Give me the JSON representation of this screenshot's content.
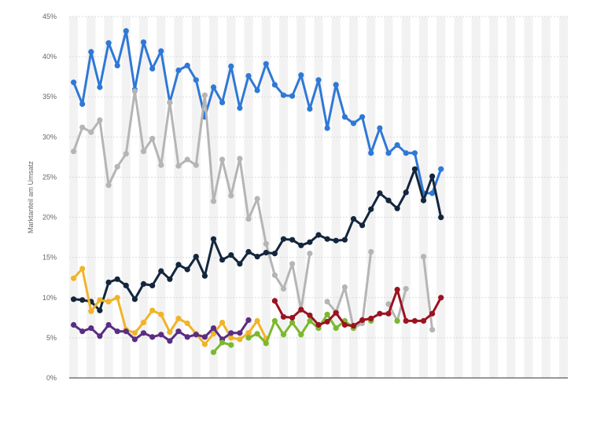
{
  "chart_data": {
    "type": "line",
    "title": "",
    "xlabel": "",
    "ylabel": "Marktanteil am Umsatz",
    "ylim": [
      0,
      45
    ],
    "yticks": [
      0,
      5,
      10,
      15,
      20,
      25,
      30,
      35,
      40,
      45
    ],
    "ytick_labels": [
      "0%",
      "5%",
      "10%",
      "15%",
      "20%",
      "25%",
      "30%",
      "35%",
      "40%",
      "45%"
    ],
    "x": [
      1,
      2,
      3,
      4,
      5,
      6,
      7,
      8,
      9,
      10,
      11,
      12,
      13,
      14,
      15,
      16,
      17,
      18,
      19,
      20,
      21,
      22,
      23,
      24,
      25,
      26,
      27,
      28,
      29,
      30,
      31,
      32,
      33,
      34,
      35,
      36,
      37,
      38,
      39,
      40,
      41,
      42,
      43,
      44,
      45,
      46,
      47,
      48,
      49,
      50,
      51,
      52,
      53,
      54,
      55,
      56,
      57
    ],
    "grid": true,
    "legend": "none",
    "colors": {
      "band": "#f2f2f2",
      "grid": "#d9d9d9",
      "axis": "#333333"
    },
    "series": [
      {
        "color": "#2f78d6",
        "values": [
          36.8,
          34.1,
          40.6,
          36.2,
          41.7,
          38.9,
          43.2,
          35.9,
          41.8,
          38.5,
          40.7,
          34.3,
          38.3,
          38.9,
          37.1,
          32.5,
          36.2,
          34.3,
          38.8,
          33.6,
          37.6,
          35.8,
          39.1,
          36.5,
          35.2,
          35.1,
          37.7,
          33.5,
          37.1,
          31.1,
          36.5,
          32.5,
          31.7,
          32.5,
          28.0,
          31.1,
          28.0,
          29.0,
          28.0,
          28.0,
          23.0,
          23.0,
          26.0,
          null,
          null,
          null,
          null,
          null,
          null,
          null,
          null,
          null,
          null,
          null,
          null,
          null,
          null
        ]
      },
      {
        "color": "#b5b5b5",
        "values": [
          28.2,
          31.2,
          30.6,
          32.1,
          24.0,
          26.3,
          27.9,
          35.7,
          28.2,
          29.8,
          26.5,
          34.3,
          26.4,
          27.2,
          26.5,
          35.2,
          22.0,
          27.2,
          22.7,
          27.3,
          19.8,
          22.3,
          16.7,
          12.8,
          11.1,
          14.2,
          8.5,
          15.5,
          null,
          9.5,
          8.2,
          11.3,
          6.2,
          6.8,
          15.7,
          null,
          9.2,
          7.1,
          11.1,
          null,
          15.1,
          6.0,
          null,
          null,
          null,
          null,
          null,
          null,
          null,
          null,
          null,
          null,
          null,
          null,
          null,
          null,
          null
        ]
      },
      {
        "color": "#14263d",
        "values": [
          9.8,
          9.7,
          9.5,
          8.4,
          11.9,
          12.3,
          11.5,
          9.8,
          11.7,
          11.5,
          13.3,
          12.3,
          14.1,
          13.5,
          15.1,
          12.7,
          17.3,
          14.7,
          15.3,
          14.2,
          15.7,
          15.1,
          15.6,
          15.5,
          17.3,
          17.2,
          16.5,
          16.9,
          17.8,
          17.3,
          17.1,
          17.2,
          19.8,
          19.0,
          21.0,
          23.0,
          22.1,
          21.1,
          23.1,
          26.0,
          22.1,
          25.1,
          20.0,
          null,
          null,
          null,
          null,
          null,
          null,
          null,
          null,
          null,
          null,
          null,
          null,
          null,
          null
        ]
      },
      {
        "color": "#f0b429",
        "values": [
          12.4,
          13.6,
          8.3,
          9.7,
          9.5,
          10.0,
          6.0,
          5.6,
          6.9,
          8.4,
          7.9,
          5.7,
          7.4,
          6.8,
          5.5,
          4.2,
          5.5,
          6.9,
          5.0,
          4.8,
          5.6,
          7.1,
          4.9,
          null,
          null,
          null,
          null,
          null,
          null,
          null,
          null,
          null,
          null,
          null,
          null,
          null,
          null,
          null,
          null,
          null,
          null,
          null,
          null,
          null,
          null,
          null,
          null,
          null,
          null,
          null,
          null,
          null,
          null,
          null,
          null,
          null,
          null
        ]
      },
      {
        "color": "#5b2d82",
        "values": [
          6.6,
          5.8,
          6.2,
          5.2,
          6.6,
          5.8,
          5.8,
          4.8,
          5.6,
          5.1,
          5.4,
          4.6,
          5.8,
          5.1,
          5.4,
          5.1,
          6.2,
          4.8,
          5.6,
          5.6,
          7.2,
          null,
          null,
          null,
          null,
          null,
          null,
          null,
          null,
          null,
          null,
          null,
          null,
          null,
          null,
          null,
          null,
          null,
          null,
          null,
          null,
          null,
          null,
          null,
          null,
          null,
          null,
          null,
          null,
          null,
          null,
          null,
          null,
          null,
          null,
          null,
          null
        ]
      },
      {
        "color": "#7cb82f",
        "values": [
          null,
          null,
          null,
          null,
          null,
          null,
          null,
          null,
          null,
          null,
          null,
          null,
          null,
          null,
          null,
          null,
          3.2,
          4.4,
          4.1,
          null,
          5.0,
          5.5,
          4.3,
          7.1,
          5.4,
          6.9,
          5.4,
          7.1,
          6.2,
          7.9,
          6.2,
          7.1,
          6.2,
          null,
          7.1,
          null,
          null,
          7.1,
          null,
          null,
          null,
          null,
          null,
          null,
          null,
          null,
          null,
          null,
          null,
          null,
          null,
          null,
          null,
          null,
          null,
          null,
          null
        ]
      },
      {
        "color": "#9b1220",
        "values": [
          null,
          null,
          null,
          null,
          null,
          null,
          null,
          null,
          null,
          null,
          null,
          null,
          null,
          null,
          null,
          null,
          null,
          null,
          null,
          null,
          null,
          null,
          null,
          9.6,
          7.6,
          7.5,
          8.5,
          7.8,
          6.6,
          7.0,
          8.1,
          6.6,
          6.5,
          7.2,
          7.4,
          8.0,
          8.0,
          11.0,
          7.1,
          7.1,
          7.1,
          8.0,
          10.0,
          null,
          null,
          null,
          null,
          null,
          null,
          null,
          null,
          null,
          null,
          null,
          null,
          null,
          null
        ]
      }
    ]
  }
}
